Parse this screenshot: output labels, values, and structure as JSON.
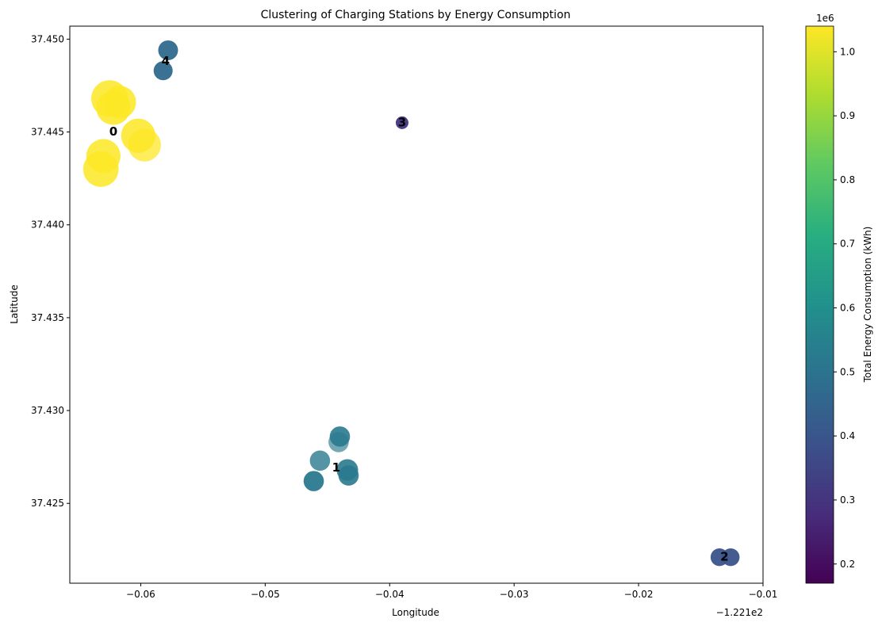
{
  "chart_data": {
    "type": "scatter",
    "title": "Clustering of Charging Stations by Energy Consumption",
    "xlabel": "Longitude",
    "ylabel": "Latitude",
    "x_offset_label": "−1.221e2",
    "xlim": [
      -0.0657,
      -0.01
    ],
    "ylim": [
      37.4207,
      37.4507
    ],
    "xticks": [
      -0.06,
      -0.05,
      -0.04,
      -0.03,
      -0.02,
      -0.01
    ],
    "xtick_labels": [
      "−0.06",
      "−0.05",
      "−0.04",
      "−0.03",
      "−0.02",
      "−0.01"
    ],
    "yticks": [
      37.425,
      37.43,
      37.435,
      37.44,
      37.445,
      37.45
    ],
    "ytick_labels": [
      "37.425",
      "37.430",
      "37.435",
      "37.440",
      "37.445",
      "37.450"
    ],
    "grid": false,
    "colorbar": {
      "label": "Total Energy Consumption (kWh)",
      "multiplier": "1e6",
      "range": [
        170000,
        1040000
      ],
      "colormap": "viridis",
      "ticks": [
        0.2,
        0.3,
        0.4,
        0.5,
        0.6,
        0.7,
        0.8,
        0.9,
        1.0
      ],
      "tick_labels": [
        "0.2",
        "0.3",
        "0.4",
        "0.5",
        "0.6",
        "0.7",
        "0.8",
        "0.9",
        "1.0"
      ]
    },
    "points": [
      {
        "x": -0.0625,
        "y": 37.4468,
        "energy": 1040000,
        "size": 1.45,
        "alpha": 0.85,
        "cluster": 0
      },
      {
        "x": -0.0622,
        "y": 37.4463,
        "energy": 1040000,
        "size": 1.35,
        "alpha": 0.85,
        "cluster": 0
      },
      {
        "x": -0.0617,
        "y": 37.4466,
        "energy": 1040000,
        "size": 1.3,
        "alpha": 0.85,
        "cluster": 0
      },
      {
        "x": -0.0602,
        "y": 37.4448,
        "energy": 1040000,
        "size": 1.35,
        "alpha": 0.85,
        "cluster": 0
      },
      {
        "x": -0.0597,
        "y": 37.4443,
        "energy": 1040000,
        "size": 1.3,
        "alpha": 0.75,
        "cluster": 0
      },
      {
        "x": -0.063,
        "y": 37.4437,
        "energy": 1040000,
        "size": 1.35,
        "alpha": 0.85,
        "cluster": 0
      },
      {
        "x": -0.0632,
        "y": 37.443,
        "energy": 1040000,
        "size": 1.4,
        "alpha": 0.85,
        "cluster": 0
      },
      {
        "x": -0.0578,
        "y": 37.4494,
        "energy": 470000,
        "size": 0.78,
        "alpha": 0.95,
        "cluster": 4
      },
      {
        "x": -0.0582,
        "y": 37.4483,
        "energy": 470000,
        "size": 0.75,
        "alpha": 0.95,
        "cluster": 4
      },
      {
        "x": -0.039,
        "y": 37.4455,
        "energy": 300000,
        "size": 0.5,
        "alpha": 0.95,
        "cluster": 3
      },
      {
        "x": -0.0441,
        "y": 37.4283,
        "energy": 520000,
        "size": 0.8,
        "alpha": 0.65,
        "cluster": 1
      },
      {
        "x": -0.044,
        "y": 37.4286,
        "energy": 520000,
        "size": 0.8,
        "alpha": 0.9,
        "cluster": 1
      },
      {
        "x": -0.0456,
        "y": 37.4273,
        "energy": 520000,
        "size": 0.8,
        "alpha": 0.8,
        "cluster": 1
      },
      {
        "x": -0.0434,
        "y": 37.4268,
        "energy": 520000,
        "size": 0.85,
        "alpha": 0.9,
        "cluster": 1
      },
      {
        "x": -0.0433,
        "y": 37.4265,
        "energy": 520000,
        "size": 0.8,
        "alpha": 0.9,
        "cluster": 1
      },
      {
        "x": -0.0461,
        "y": 37.4262,
        "energy": 520000,
        "size": 0.8,
        "alpha": 0.95,
        "cluster": 1
      },
      {
        "x": -0.0135,
        "y": 37.4221,
        "energy": 390000,
        "size": 0.7,
        "alpha": 0.95,
        "cluster": 2
      },
      {
        "x": -0.0126,
        "y": 37.4221,
        "energy": 390000,
        "size": 0.7,
        "alpha": 0.95,
        "cluster": 2
      }
    ],
    "cluster_labels": [
      {
        "label": "0",
        "x": -0.0622,
        "y": 37.445
      },
      {
        "label": "1",
        "x": -0.0443,
        "y": 37.4269
      },
      {
        "label": "2",
        "x": -0.0131,
        "y": 37.4221
      },
      {
        "label": "3",
        "x": -0.039,
        "y": 37.4455
      },
      {
        "label": "4",
        "x": -0.058,
        "y": 37.4488
      }
    ]
  }
}
